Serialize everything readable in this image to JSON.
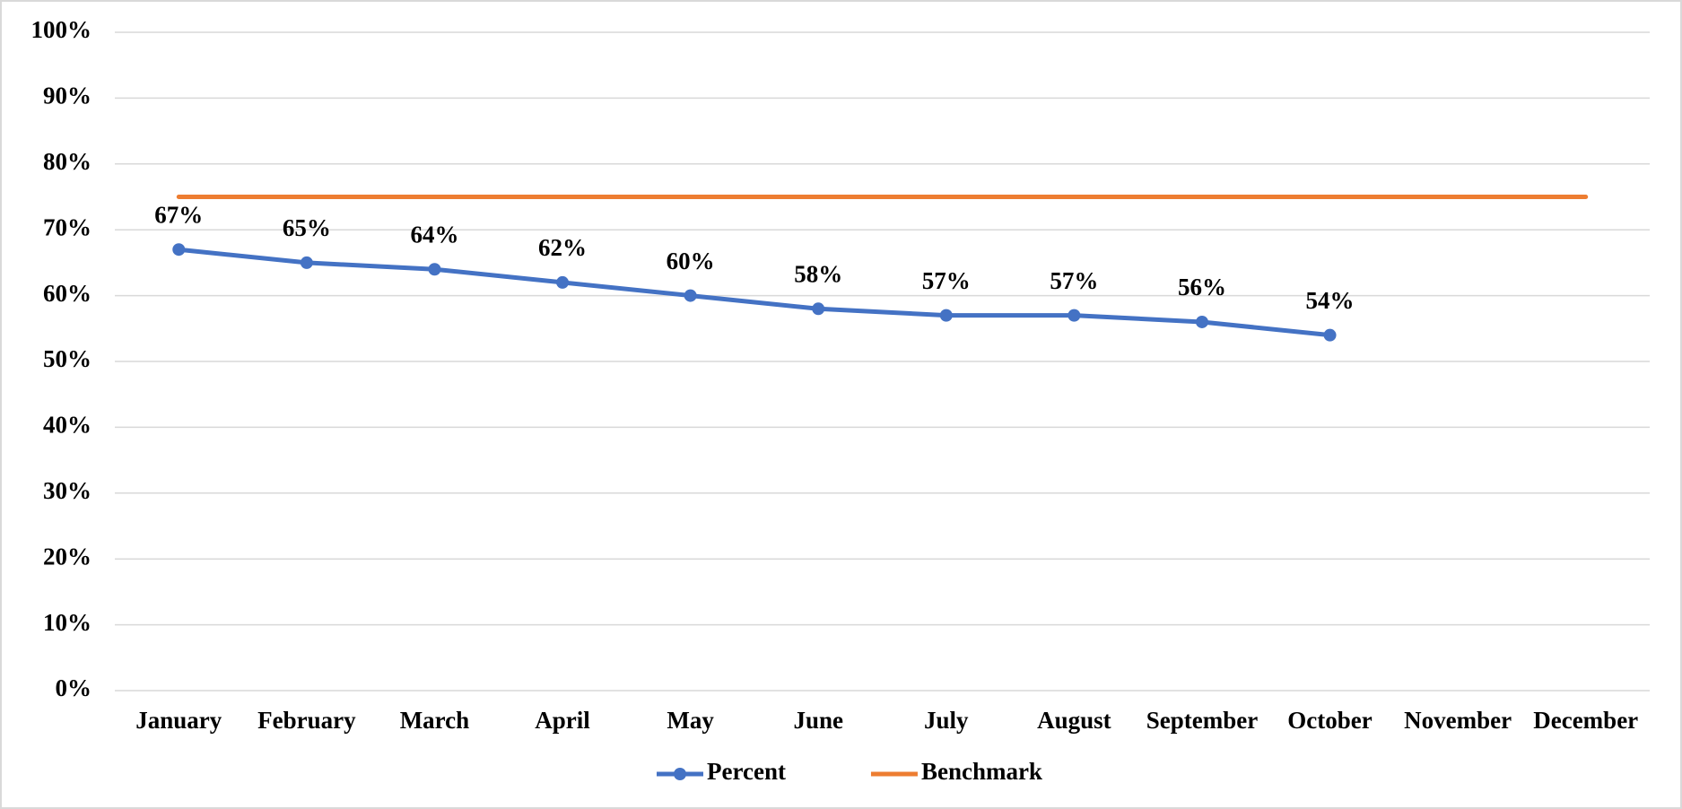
{
  "chart_data": {
    "type": "line",
    "categories": [
      "January",
      "February",
      "March",
      "April",
      "May",
      "June",
      "July",
      "August",
      "September",
      "October",
      "November",
      "December"
    ],
    "series": [
      {
        "name": "Percent",
        "color": "#4472c4",
        "marker": true,
        "values": [
          67,
          65,
          64,
          62,
          60,
          58,
          57,
          57,
          56,
          54,
          null,
          null
        ],
        "value_labels": [
          "67%",
          "65%",
          "64%",
          "62%",
          "60%",
          "58%",
          "57%",
          "57%",
          "56%",
          "54%",
          null,
          null
        ]
      },
      {
        "name": "Benchmark",
        "color": "#ed7d31",
        "marker": false,
        "values": [
          75,
          75,
          75,
          75,
          75,
          75,
          75,
          75,
          75,
          75,
          75,
          75
        ]
      }
    ],
    "ylim": [
      0,
      100
    ],
    "yticks": [
      {
        "value": 0,
        "label": "0%"
      },
      {
        "value": 10,
        "label": "10%"
      },
      {
        "value": 20,
        "label": "20%"
      },
      {
        "value": 30,
        "label": "30%"
      },
      {
        "value": 40,
        "label": "40%"
      },
      {
        "value": 50,
        "label": "50%"
      },
      {
        "value": 60,
        "label": "60%"
      },
      {
        "value": 70,
        "label": "70%"
      },
      {
        "value": 80,
        "label": "80%"
      },
      {
        "value": 90,
        "label": "90%"
      },
      {
        "value": 100,
        "label": "100%"
      }
    ],
    "grid": true,
    "legend": "bottom"
  }
}
